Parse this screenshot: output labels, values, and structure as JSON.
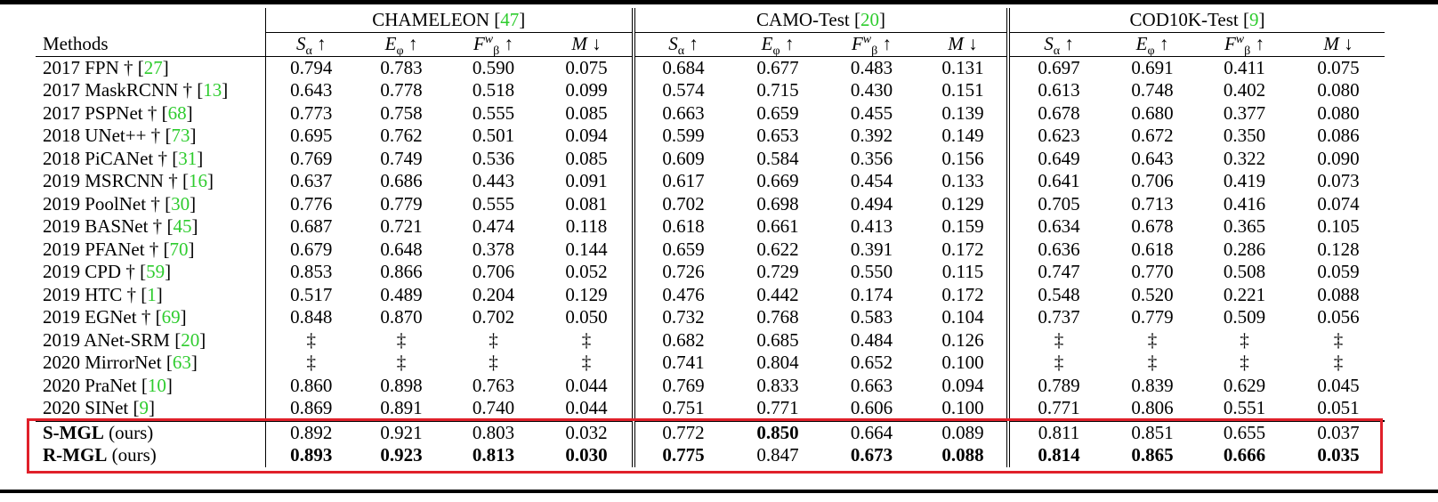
{
  "header": {
    "methods_label": "Methods",
    "groups": [
      {
        "name": "CHAMELEON",
        "ref": "47"
      },
      {
        "name": "CAMO-Test",
        "ref": "20"
      },
      {
        "name": "COD10K-Test",
        "ref": "9"
      }
    ],
    "metrics": [
      "Sα ↑",
      "Eφ ↑",
      "Fβw ↑",
      "M ↓"
    ]
  },
  "rows": [
    {
      "method": "2017 FPN †",
      "ref": "27",
      "vals": [
        "0.794",
        "0.783",
        "0.590",
        "0.075",
        "0.684",
        "0.677",
        "0.483",
        "0.131",
        "0.697",
        "0.691",
        "0.411",
        "0.075"
      ]
    },
    {
      "method": "2017 MaskRCNN †",
      "ref": "13",
      "vals": [
        "0.643",
        "0.778",
        "0.518",
        "0.099",
        "0.574",
        "0.715",
        "0.430",
        "0.151",
        "0.613",
        "0.748",
        "0.402",
        "0.080"
      ]
    },
    {
      "method": "2017 PSPNet †",
      "ref": "68",
      "vals": [
        "0.773",
        "0.758",
        "0.555",
        "0.085",
        "0.663",
        "0.659",
        "0.455",
        "0.139",
        "0.678",
        "0.680",
        "0.377",
        "0.080"
      ]
    },
    {
      "method": "2018 UNet++ †",
      "ref": "73",
      "vals": [
        "0.695",
        "0.762",
        "0.501",
        "0.094",
        "0.599",
        "0.653",
        "0.392",
        "0.149",
        "0.623",
        "0.672",
        "0.350",
        "0.086"
      ]
    },
    {
      "method": "2018 PiCANet †",
      "ref": "31",
      "vals": [
        "0.769",
        "0.749",
        "0.536",
        "0.085",
        "0.609",
        "0.584",
        "0.356",
        "0.156",
        "0.649",
        "0.643",
        "0.322",
        "0.090"
      ]
    },
    {
      "method": "2019 MSRCNN †",
      "ref": "16",
      "vals": [
        "0.637",
        "0.686",
        "0.443",
        "0.091",
        "0.617",
        "0.669",
        "0.454",
        "0.133",
        "0.641",
        "0.706",
        "0.419",
        "0.073"
      ]
    },
    {
      "method": "2019 PoolNet †",
      "ref": "30",
      "vals": [
        "0.776",
        "0.779",
        "0.555",
        "0.081",
        "0.702",
        "0.698",
        "0.494",
        "0.129",
        "0.705",
        "0.713",
        "0.416",
        "0.074"
      ]
    },
    {
      "method": "2019 BASNet †",
      "ref": "45",
      "vals": [
        "0.687",
        "0.721",
        "0.474",
        "0.118",
        "0.618",
        "0.661",
        "0.413",
        "0.159",
        "0.634",
        "0.678",
        "0.365",
        "0.105"
      ]
    },
    {
      "method": "2019 PFANet †",
      "ref": "70",
      "vals": [
        "0.679",
        "0.648",
        "0.378",
        "0.144",
        "0.659",
        "0.622",
        "0.391",
        "0.172",
        "0.636",
        "0.618",
        "0.286",
        "0.128"
      ]
    },
    {
      "method": "2019 CPD †",
      "ref": "59",
      "vals": [
        "0.853",
        "0.866",
        "0.706",
        "0.052",
        "0.726",
        "0.729",
        "0.550",
        "0.115",
        "0.747",
        "0.770",
        "0.508",
        "0.059"
      ]
    },
    {
      "method": "2019 HTC †",
      "ref": "1",
      "vals": [
        "0.517",
        "0.489",
        "0.204",
        "0.129",
        "0.476",
        "0.442",
        "0.174",
        "0.172",
        "0.548",
        "0.520",
        "0.221",
        "0.088"
      ]
    },
    {
      "method": "2019 EGNet †",
      "ref": "69",
      "vals": [
        "0.848",
        "0.870",
        "0.702",
        "0.050",
        "0.732",
        "0.768",
        "0.583",
        "0.104",
        "0.737",
        "0.779",
        "0.509",
        "0.056"
      ]
    },
    {
      "method": "2019 ANet-SRM",
      "ref": "20",
      "vals": [
        "‡",
        "‡",
        "‡",
        "‡",
        "0.682",
        "0.685",
        "0.484",
        "0.126",
        "‡",
        "‡",
        "‡",
        "‡"
      ]
    },
    {
      "method": "2020 MirrorNet",
      "ref": "63",
      "vals": [
        "‡",
        "‡",
        "‡",
        "‡",
        "0.741",
        "0.804",
        "0.652",
        "0.100",
        "‡",
        "‡",
        "‡",
        "‡"
      ]
    },
    {
      "method": "2020 PraNet",
      "ref": "10",
      "vals": [
        "0.860",
        "0.898",
        "0.763",
        "0.044",
        "0.769",
        "0.833",
        "0.663",
        "0.094",
        "0.789",
        "0.839",
        "0.629",
        "0.045"
      ]
    },
    {
      "method": "2020 SINet",
      "ref": "9",
      "vals": [
        "0.869",
        "0.891",
        "0.740",
        "0.044",
        "0.751",
        "0.771",
        "0.606",
        "0.100",
        "0.771",
        "0.806",
        "0.551",
        "0.051"
      ]
    }
  ],
  "ours": [
    {
      "name": "S-MGL",
      "suffix": "(ours)",
      "vals": [
        "0.892",
        "0.921",
        "0.803",
        "0.032",
        "0.772",
        "0.850",
        "0.664",
        "0.089",
        "0.811",
        "0.851",
        "0.655",
        "0.037"
      ],
      "bold": [
        false,
        false,
        false,
        false,
        false,
        true,
        false,
        false,
        false,
        false,
        false,
        false
      ]
    },
    {
      "name": "R-MGL",
      "suffix": "(ours)",
      "vals": [
        "0.893",
        "0.923",
        "0.813",
        "0.030",
        "0.775",
        "0.847",
        "0.673",
        "0.088",
        "0.814",
        "0.865",
        "0.666",
        "0.035"
      ],
      "bold": [
        true,
        true,
        true,
        true,
        true,
        false,
        true,
        true,
        true,
        true,
        true,
        true
      ]
    }
  ],
  "colors": {
    "ref": "#2ecc2e",
    "highlight_box": "#e0202a"
  }
}
